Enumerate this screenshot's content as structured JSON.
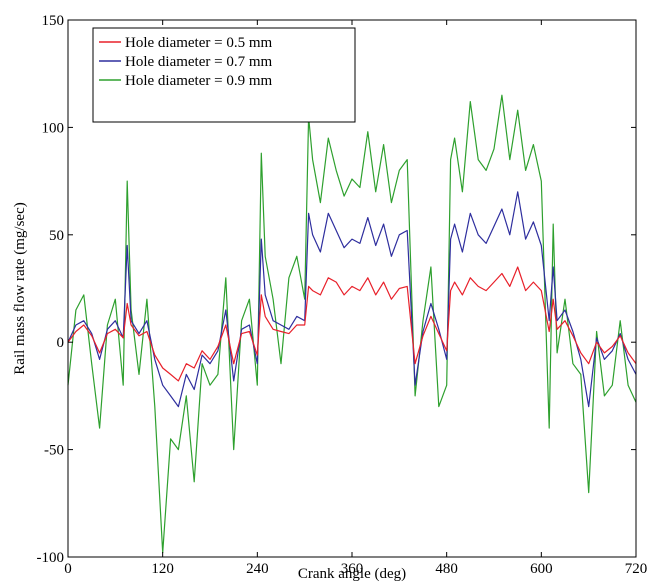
{
  "chart_data": {
    "type": "line",
    "xlabel": "Crank angle (deg)",
    "ylabel": "Rail mass flow rate (mg/sec)",
    "xlim": [
      0,
      720
    ],
    "ylim": [
      -100,
      150
    ],
    "xticks": [
      0,
      120,
      240,
      360,
      480,
      600,
      720
    ],
    "yticks": [
      -100,
      -50,
      0,
      50,
      100,
      150
    ],
    "grid": false,
    "legend_position": "top-left",
    "series": [
      {
        "name": "Hole diameter = 0.5 mm",
        "color": "#e8202a",
        "x": [
          0,
          10,
          20,
          30,
          40,
          50,
          60,
          70,
          75,
          80,
          90,
          100,
          110,
          120,
          130,
          140,
          150,
          160,
          170,
          180,
          190,
          200,
          210,
          220,
          230,
          240,
          245,
          250,
          260,
          270,
          280,
          290,
          300,
          305,
          310,
          320,
          330,
          340,
          350,
          360,
          370,
          380,
          390,
          400,
          410,
          420,
          430,
          440,
          450,
          460,
          470,
          480,
          485,
          490,
          500,
          510,
          520,
          530,
          540,
          550,
          560,
          570,
          580,
          590,
          600,
          610,
          615,
          620,
          630,
          640,
          650,
          660,
          670,
          680,
          690,
          700,
          710,
          720
        ],
        "y": [
          0,
          5,
          8,
          3,
          -5,
          4,
          6,
          2,
          18,
          8,
          3,
          5,
          -6,
          -12,
          -15,
          -18,
          -10,
          -12,
          -4,
          -8,
          -2,
          8,
          -10,
          4,
          5,
          -6,
          22,
          12,
          6,
          5,
          4,
          8,
          8,
          26,
          24,
          22,
          30,
          28,
          22,
          26,
          24,
          30,
          22,
          28,
          20,
          25,
          26,
          -10,
          3,
          12,
          4,
          -4,
          24,
          28,
          22,
          30,
          26,
          24,
          28,
          32,
          26,
          35,
          24,
          28,
          24,
          5,
          20,
          6,
          10,
          3,
          -5,
          -10,
          0,
          -5,
          -2,
          3,
          -5,
          -10
        ]
      },
      {
        "name": "Hole diameter = 0.7 mm",
        "color": "#2e2e9e",
        "x": [
          0,
          10,
          20,
          30,
          40,
          50,
          60,
          70,
          75,
          80,
          90,
          100,
          110,
          120,
          130,
          140,
          150,
          160,
          170,
          180,
          190,
          200,
          210,
          220,
          230,
          240,
          245,
          250,
          260,
          270,
          280,
          290,
          300,
          305,
          310,
          320,
          330,
          340,
          350,
          360,
          370,
          380,
          390,
          400,
          410,
          420,
          430,
          440,
          450,
          460,
          470,
          480,
          485,
          490,
          500,
          510,
          520,
          530,
          540,
          550,
          560,
          570,
          580,
          590,
          600,
          610,
          615,
          620,
          630,
          640,
          650,
          660,
          670,
          680,
          690,
          700,
          710,
          720
        ],
        "y": [
          0,
          8,
          10,
          4,
          -8,
          6,
          10,
          2,
          45,
          10,
          4,
          10,
          -8,
          -20,
          -25,
          -30,
          -15,
          -22,
          -6,
          -10,
          -4,
          15,
          -18,
          6,
          8,
          -10,
          48,
          22,
          10,
          8,
          6,
          12,
          10,
          60,
          50,
          42,
          60,
          52,
          44,
          48,
          46,
          58,
          45,
          55,
          40,
          50,
          52,
          -20,
          5,
          18,
          6,
          -8,
          48,
          55,
          42,
          60,
          50,
          46,
          54,
          62,
          50,
          70,
          48,
          56,
          45,
          10,
          35,
          10,
          15,
          5,
          -8,
          -30,
          2,
          -8,
          -4,
          4,
          -8,
          -15
        ]
      },
      {
        "name": "Hole diameter = 0.9 mm",
        "color": "#2ea02e",
        "x": [
          0,
          10,
          20,
          30,
          40,
          50,
          60,
          70,
          75,
          80,
          90,
          100,
          110,
          120,
          130,
          140,
          150,
          160,
          170,
          180,
          190,
          200,
          210,
          220,
          230,
          240,
          245,
          250,
          260,
          270,
          280,
          290,
          300,
          305,
          310,
          320,
          330,
          340,
          350,
          360,
          370,
          380,
          390,
          400,
          410,
          420,
          430,
          440,
          450,
          460,
          470,
          480,
          485,
          490,
          500,
          510,
          520,
          530,
          540,
          550,
          560,
          570,
          580,
          590,
          600,
          610,
          615,
          620,
          630,
          640,
          650,
          660,
          670,
          680,
          690,
          700,
          710,
          720
        ],
        "y": [
          -20,
          15,
          22,
          -10,
          -40,
          8,
          20,
          -20,
          75,
          15,
          -15,
          20,
          -30,
          -98,
          -45,
          -50,
          -25,
          -65,
          -10,
          -20,
          -15,
          30,
          -50,
          10,
          20,
          -20,
          88,
          40,
          20,
          -10,
          30,
          40,
          20,
          105,
          85,
          65,
          95,
          80,
          68,
          76,
          72,
          98,
          70,
          92,
          65,
          80,
          85,
          -25,
          10,
          35,
          -30,
          -20,
          85,
          95,
          70,
          112,
          85,
          80,
          90,
          115,
          85,
          108,
          80,
          92,
          75,
          -40,
          55,
          -5,
          20,
          -10,
          -15,
          -70,
          5,
          -25,
          -20,
          10,
          -20,
          -28
        ]
      }
    ]
  }
}
